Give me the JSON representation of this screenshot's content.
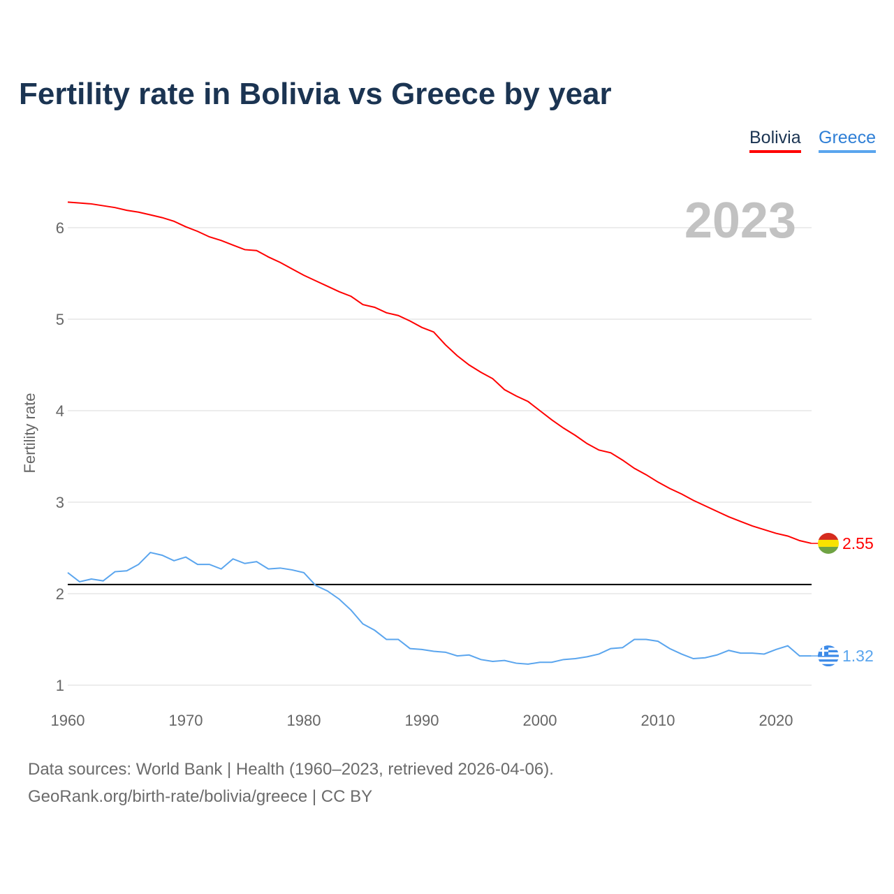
{
  "title": "Fertility rate in Bolivia vs Greece by year",
  "legend": [
    "Bolivia",
    "Greece"
  ],
  "year_label": "2023",
  "sources": [
    "Data sources: World Bank | Health (1960–2023, retrieved 2026-04-06).",
    "GeoRank.org/birth-rate/bolivia/greece | CC BY"
  ],
  "chart_data": {
    "type": "line",
    "title": "Fertility rate in Bolivia vs Greece by year",
    "xlabel": "",
    "ylabel": "Fertility rate",
    "xlim": [
      1960,
      2023
    ],
    "ylim": [
      0.8,
      6.5
    ],
    "xticks": [
      1960,
      1970,
      1980,
      1990,
      2000,
      2010,
      2020
    ],
    "yticks": [
      1,
      2,
      3,
      4,
      5,
      6
    ],
    "reference_line": 2.1,
    "x": [
      1960,
      1961,
      1962,
      1963,
      1964,
      1965,
      1966,
      1967,
      1968,
      1969,
      1970,
      1971,
      1972,
      1973,
      1974,
      1975,
      1976,
      1977,
      1978,
      1979,
      1980,
      1981,
      1982,
      1983,
      1984,
      1985,
      1986,
      1987,
      1988,
      1989,
      1990,
      1991,
      1992,
      1993,
      1994,
      1995,
      1996,
      1997,
      1998,
      1999,
      2000,
      2001,
      2002,
      2003,
      2004,
      2005,
      2006,
      2007,
      2008,
      2009,
      2010,
      2011,
      2012,
      2013,
      2014,
      2015,
      2016,
      2017,
      2018,
      2019,
      2020,
      2021,
      2022,
      2023
    ],
    "series": [
      {
        "name": "Bolivia",
        "color": "#ff0000",
        "end_label": "2.55",
        "values": [
          6.28,
          6.27,
          6.26,
          6.24,
          6.22,
          6.19,
          6.17,
          6.14,
          6.11,
          6.07,
          6.01,
          5.96,
          5.9,
          5.86,
          5.81,
          5.76,
          5.75,
          5.68,
          5.62,
          5.55,
          5.48,
          5.42,
          5.36,
          5.3,
          5.25,
          5.16,
          5.13,
          5.07,
          5.04,
          4.98,
          4.91,
          4.86,
          4.72,
          4.6,
          4.5,
          4.42,
          4.35,
          4.23,
          4.16,
          4.1,
          4.0,
          3.9,
          3.81,
          3.73,
          3.64,
          3.57,
          3.54,
          3.46,
          3.37,
          3.3,
          3.22,
          3.15,
          3.09,
          3.02,
          2.96,
          2.9,
          2.84,
          2.79,
          2.74,
          2.7,
          2.66,
          2.63,
          2.58,
          2.55
        ]
      },
      {
        "name": "Greece",
        "color": "#5aa5ee",
        "end_label": "1.32",
        "values": [
          2.23,
          2.13,
          2.16,
          2.14,
          2.24,
          2.25,
          2.32,
          2.45,
          2.42,
          2.36,
          2.4,
          2.32,
          2.32,
          2.27,
          2.38,
          2.33,
          2.35,
          2.27,
          2.28,
          2.26,
          2.23,
          2.09,
          2.03,
          1.94,
          1.82,
          1.67,
          1.6,
          1.5,
          1.5,
          1.4,
          1.39,
          1.37,
          1.36,
          1.32,
          1.33,
          1.28,
          1.26,
          1.27,
          1.24,
          1.23,
          1.25,
          1.25,
          1.28,
          1.29,
          1.31,
          1.34,
          1.4,
          1.41,
          1.5,
          1.5,
          1.48,
          1.4,
          1.34,
          1.29,
          1.3,
          1.33,
          1.38,
          1.35,
          1.35,
          1.34,
          1.39,
          1.43,
          1.32,
          1.32
        ]
      }
    ]
  }
}
